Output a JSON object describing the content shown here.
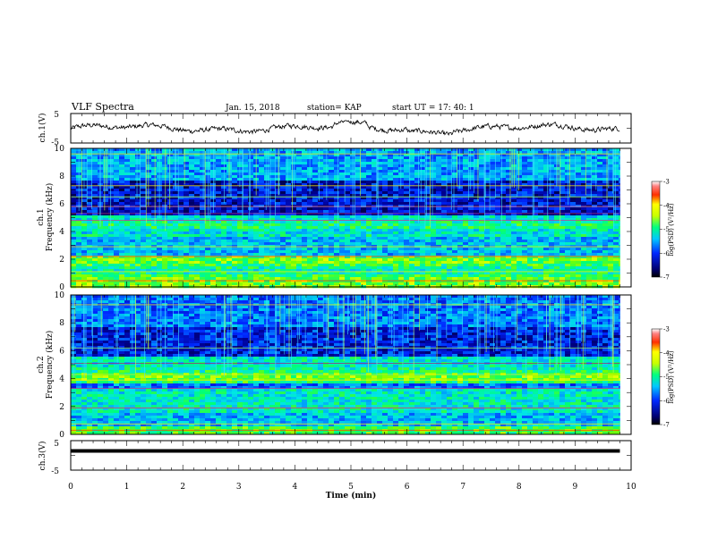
{
  "header": {
    "title": "VLF Spectra",
    "date": "Jan. 15, 2018",
    "station": "station= KAP",
    "start": "start  UT =   17: 40: 1"
  },
  "chart_data": [
    {
      "type": "line",
      "panel": "ch1-waveform",
      "ylabel": "ch.1(V)",
      "ylim": [
        -5,
        5
      ],
      "yticks": [
        "5",
        "-5"
      ],
      "xlim": [
        0,
        10
      ],
      "series_summary": "noisy signal oscillating roughly between -3 and 2 V across 0 to 9.8 min"
    },
    {
      "type": "heatmap",
      "panel": "ch1-spectrogram",
      "ylabel_top": "ch.1",
      "ylabel": "Frequency (kHz)",
      "ylim": [
        0,
        10
      ],
      "yticks": [
        "0",
        "2",
        "4",
        "6",
        "8",
        "10"
      ],
      "xlim": [
        0,
        10
      ],
      "data_end_min": 9.8,
      "colorbar": {
        "label": "log(PSD) (V²/Hz)",
        "range": [
          -7,
          -3
        ],
        "ticks": [
          "-3",
          "-4",
          "-5",
          "-6",
          "-7"
        ]
      }
    },
    {
      "type": "heatmap",
      "panel": "ch2-spectrogram",
      "ylabel_top": "ch.2",
      "ylabel": "Frequency (kHz)",
      "ylim": [
        0,
        10
      ],
      "yticks": [
        "0",
        "2",
        "4",
        "6",
        "8",
        "10"
      ],
      "xlim": [
        0,
        10
      ],
      "data_end_min": 9.8,
      "colorbar": {
        "label": "log(PSD) (V²/Hz)",
        "range": [
          -7,
          -3
        ],
        "ticks": [
          "-3",
          "-4",
          "-5",
          "-6",
          "-7"
        ]
      }
    },
    {
      "type": "line",
      "panel": "ch3-waveform",
      "ylabel": "ch.3(V)",
      "ylim": [
        -5,
        5
      ],
      "yticks": [
        "5",
        "-5"
      ],
      "xlim": [
        0,
        10
      ],
      "constant_value": 0,
      "xlabel": "Time (min)",
      "xticks": [
        "0",
        "1",
        "2",
        "3",
        "4",
        "5",
        "6",
        "7",
        "8",
        "9",
        "10"
      ]
    }
  ]
}
